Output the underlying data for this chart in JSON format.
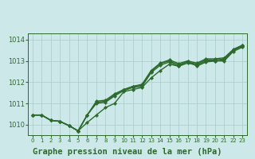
{
  "xlabel": "Graphe pression niveau de la mer (hPa)",
  "x_hours": [
    0,
    1,
    2,
    3,
    4,
    5,
    6,
    7,
    8,
    9,
    10,
    11,
    12,
    13,
    14,
    15,
    16,
    17,
    18,
    19,
    20,
    21,
    22,
    23
  ],
  "series": [
    [
      1010.45,
      1010.45,
      1010.2,
      1010.15,
      1009.95,
      1009.7,
      1010.1,
      1010.45,
      1010.8,
      1011.0,
      1011.55,
      1011.65,
      1011.75,
      1012.2,
      1012.55,
      1012.85,
      1012.75,
      1013.0,
      1012.75,
      1012.95,
      1013.0,
      1013.0,
      1013.45,
      1013.65
    ],
    [
      1010.45,
      1010.45,
      1010.2,
      1010.15,
      1009.95,
      1009.7,
      1010.45,
      1011.0,
      1011.05,
      1011.35,
      1011.6,
      1011.75,
      1011.8,
      1012.45,
      1012.8,
      1012.95,
      1012.75,
      1012.9,
      1012.8,
      1013.0,
      1013.0,
      1013.05,
      1013.5,
      1013.7
    ],
    [
      1010.45,
      1010.45,
      1010.2,
      1010.15,
      1009.95,
      1009.7,
      1010.45,
      1011.05,
      1011.1,
      1011.4,
      1011.65,
      1011.8,
      1011.85,
      1012.5,
      1012.88,
      1013.0,
      1012.82,
      1012.95,
      1012.85,
      1013.05,
      1013.05,
      1013.1,
      1013.52,
      1013.72
    ],
    [
      1010.45,
      1010.45,
      1010.2,
      1010.15,
      1009.95,
      1009.7,
      1010.45,
      1011.1,
      1011.15,
      1011.45,
      1011.65,
      1011.8,
      1011.9,
      1012.55,
      1012.9,
      1013.05,
      1012.88,
      1013.0,
      1012.9,
      1013.1,
      1013.1,
      1013.15,
      1013.55,
      1013.75
    ]
  ],
  "line_color": "#2d6a2d",
  "marker_color": "#2d6a2d",
  "bg_color": "#cce8e8",
  "grid_color": "#aacccc",
  "ylim": [
    1009.5,
    1014.3
  ],
  "yticks": [
    1010,
    1011,
    1012,
    1013,
    1014
  ],
  "xticks": [
    0,
    1,
    2,
    3,
    4,
    5,
    6,
    7,
    8,
    9,
    10,
    11,
    12,
    13,
    14,
    15,
    16,
    17,
    18,
    19,
    20,
    21,
    22,
    23
  ],
  "xlabel_fontsize": 7.5,
  "tick_fontsize": 6.0,
  "line_width": 1.0,
  "marker_size": 2.2
}
